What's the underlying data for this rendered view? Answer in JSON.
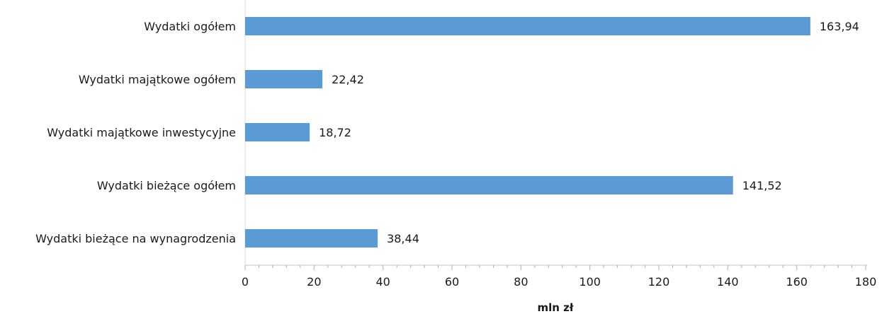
{
  "chart_data": {
    "type": "bar",
    "orientation": "horizontal",
    "categories": [
      "Wydatki ogółem",
      "Wydatki majątkowe ogółem",
      "Wydatki majątkowe inwestycyjne",
      "Wydatki bieżące ogółem",
      "Wydatki bieżące na wynagrodzenia"
    ],
    "values": [
      163.94,
      22.42,
      18.72,
      141.52,
      38.44
    ],
    "value_labels": [
      "163,94",
      "22,42",
      "18,72",
      "141,52",
      "38,44"
    ],
    "xlabel": "mln zł",
    "xlim": [
      0,
      180
    ],
    "xticks": [
      "0",
      "20",
      "40",
      "60",
      "80",
      "100",
      "120",
      "140",
      "160",
      "180"
    ],
    "grid": false,
    "bar_color": "#5b9bd5",
    "axis_color": "#d9d9d9"
  }
}
